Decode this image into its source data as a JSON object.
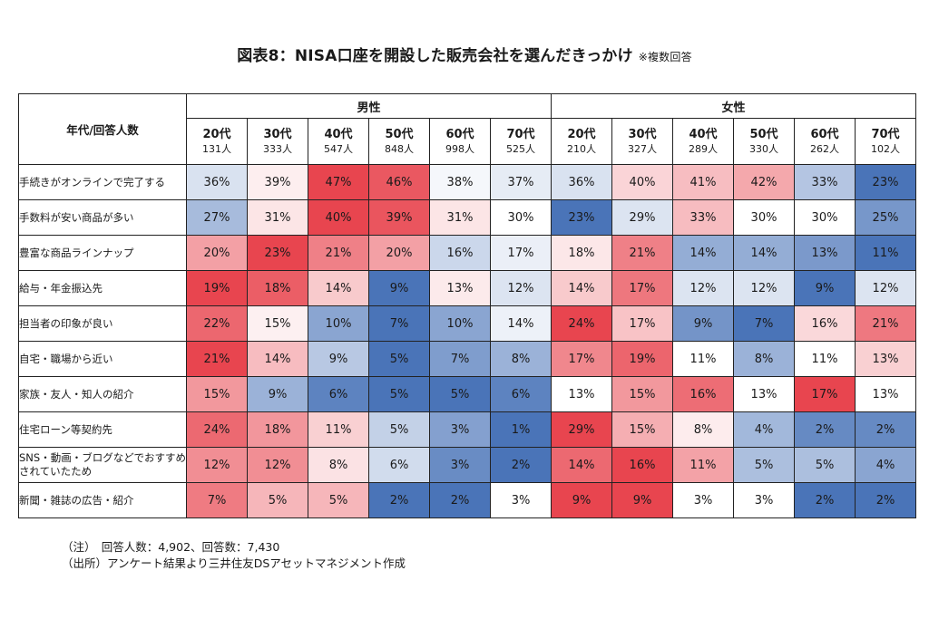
{
  "title": "図表8：NISA口座を開設した販売会社を選んだきっかけ",
  "title_note": "※複数回答",
  "chart_data": {
    "type": "heatmap",
    "corner_label": "年代/回答人数",
    "groups": [
      {
        "name": "男性",
        "ages": [
          "20代",
          "30代",
          "40代",
          "50代",
          "60代",
          "70代"
        ],
        "counts": [
          "131人",
          "333人",
          "547人",
          "848人",
          "998人",
          "525人"
        ]
      },
      {
        "name": "女性",
        "ages": [
          "20代",
          "30代",
          "40代",
          "50代",
          "60代",
          "70代"
        ],
        "counts": [
          "210人",
          "327人",
          "289人",
          "330人",
          "262人",
          "102人"
        ]
      }
    ],
    "rows": [
      {
        "label": "手続きがオンラインで完了する",
        "values": [
          36,
          39,
          47,
          46,
          38,
          37,
          36,
          40,
          41,
          42,
          33,
          23
        ]
      },
      {
        "label": "手数料が安い商品が多い",
        "values": [
          27,
          31,
          40,
          39,
          31,
          30,
          23,
          29,
          33,
          30,
          30,
          25
        ]
      },
      {
        "label": "豊富な商品ラインナップ",
        "values": [
          20,
          23,
          21,
          20,
          16,
          17,
          18,
          21,
          14,
          14,
          13,
          11
        ]
      },
      {
        "label": "給与・年金振込先",
        "values": [
          19,
          18,
          14,
          9,
          13,
          12,
          14,
          17,
          12,
          12,
          9,
          12
        ]
      },
      {
        "label": "担当者の印象が良い",
        "values": [
          22,
          15,
          10,
          7,
          10,
          14,
          24,
          17,
          9,
          7,
          16,
          21
        ]
      },
      {
        "label": "自宅・職場から近い",
        "values": [
          21,
          14,
          9,
          5,
          7,
          8,
          17,
          19,
          11,
          8,
          11,
          13
        ]
      },
      {
        "label": "家族・友人・知人の紹介",
        "values": [
          15,
          9,
          6,
          5,
          5,
          6,
          13,
          15,
          16,
          13,
          17,
          13
        ]
      },
      {
        "label": "住宅ローン等契約先",
        "values": [
          24,
          18,
          11,
          5,
          3,
          1,
          29,
          15,
          8,
          4,
          2,
          2
        ]
      },
      {
        "label": "SNS・動画・ブログなどでおすすめされていたため",
        "values": [
          12,
          12,
          8,
          6,
          3,
          2,
          14,
          16,
          11,
          5,
          5,
          4
        ]
      },
      {
        "label": "新聞・雑誌の広告・紹介",
        "values": [
          7,
          5,
          5,
          2,
          2,
          3,
          9,
          9,
          3,
          3,
          2,
          2
        ]
      }
    ],
    "value_suffix": "%",
    "color_scale": {
      "high": "#e8454f",
      "mid": "#ffffff",
      "low": "#4a74b8"
    }
  },
  "notes": [
    "（注）　回答人数：4,902、回答数：7,430",
    "（出所）アンケート結果より三井住友DSアセットマネジメント作成"
  ]
}
